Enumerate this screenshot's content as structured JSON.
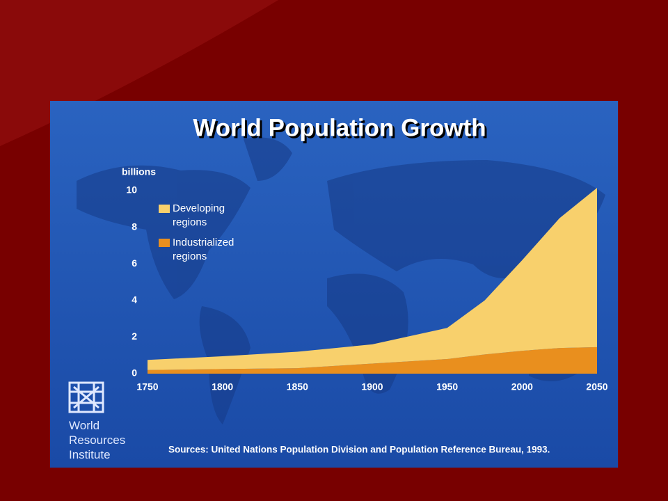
{
  "chart_data": {
    "type": "stacked-area",
    "title": "World Population Growth",
    "ylabel": "billions",
    "x": [
      1750,
      1800,
      1850,
      1900,
      1950,
      1975,
      2000,
      2025,
      2050
    ],
    "series": [
      {
        "name": "Developing regions",
        "color": "#f8d06c",
        "values": [
          0.55,
          0.7,
          0.9,
          1.05,
          1.7,
          2.95,
          4.95,
          7.1,
          8.7
        ]
      },
      {
        "name": "Industrialized regions",
        "color": "#e98f1e",
        "values": [
          0.2,
          0.25,
          0.3,
          0.55,
          0.8,
          1.05,
          1.25,
          1.4,
          1.45
        ]
      }
    ],
    "xlim": [
      1750,
      2050
    ],
    "xticks": [
      1750,
      1800,
      1850,
      1900,
      1950,
      2000,
      2050
    ],
    "ylim": [
      0,
      10
    ],
    "yticks": [
      0,
      2,
      4,
      6,
      8,
      10
    ],
    "grid": false,
    "source": "Sources: United Nations Population Division and Population Reference Bureau, 1993.",
    "publisher": "World Resources Institute"
  }
}
